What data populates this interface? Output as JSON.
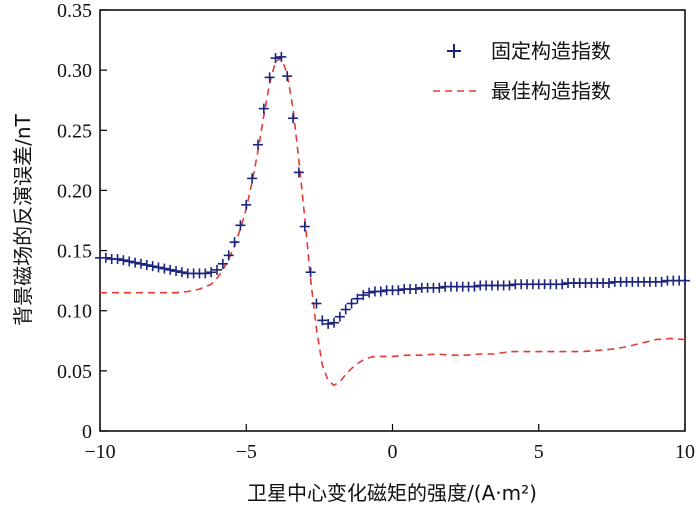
{
  "chart_data": {
    "type": "line",
    "title": "",
    "xlabel": "卫星中心变化磁矩的强度/(A·m²)",
    "ylabel": "背景磁场的反演误差/nT",
    "xlim": [
      -10,
      10
    ],
    "ylim": [
      0,
      0.35
    ],
    "xticks": [
      -10,
      -5,
      0,
      5,
      10
    ],
    "xtick_labels": [
      "−10",
      "−5",
      "0",
      "5",
      "10"
    ],
    "yticks": [
      0,
      0.05,
      0.1,
      0.15,
      0.2,
      0.25,
      0.3,
      0.35
    ],
    "ytick_labels": [
      "0",
      "0.05",
      "0.10",
      "0.15",
      "0.20",
      "0.25",
      "0.30",
      "0.35"
    ],
    "grid": false,
    "legend_position": "top-right",
    "colors": {
      "fixed": "#1a237e",
      "best": "#e53935",
      "axis": "#000000"
    },
    "series": [
      {
        "name": "固定构造指数",
        "style": "marker-plus",
        "x": [
          -10,
          -9.8,
          -9.6,
          -9.4,
          -9.2,
          -9.0,
          -8.8,
          -8.6,
          -8.4,
          -8.2,
          -8.0,
          -7.8,
          -7.6,
          -7.4,
          -7.2,
          -7.0,
          -6.8,
          -6.6,
          -6.4,
          -6.2,
          -6.0,
          -5.8,
          -5.6,
          -5.4,
          -5.2,
          -5.0,
          -4.8,
          -4.6,
          -4.4,
          -4.2,
          -4.0,
          -3.8,
          -3.6,
          -3.4,
          -3.2,
          -3.0,
          -2.8,
          -2.6,
          -2.4,
          -2.2,
          -2.0,
          -1.8,
          -1.6,
          -1.4,
          -1.2,
          -1.0,
          -0.8,
          -0.6,
          -0.4,
          -0.2,
          0,
          0.2,
          0.4,
          0.6,
          0.8,
          1.0,
          1.2,
          1.4,
          1.6,
          1.8,
          2.0,
          2.2,
          2.4,
          2.6,
          2.8,
          3.0,
          3.2,
          3.4,
          3.6,
          3.8,
          4.0,
          4.2,
          4.4,
          4.6,
          4.8,
          5.0,
          5.2,
          5.4,
          5.6,
          5.8,
          6.0,
          6.2,
          6.4,
          6.6,
          6.8,
          7.0,
          7.2,
          7.4,
          7.6,
          7.8,
          8.0,
          8.2,
          8.4,
          8.6,
          8.8,
          9.0,
          9.2,
          9.4,
          9.6,
          9.8,
          10.0
        ],
        "y": [
          0.144,
          0.144,
          0.143,
          0.143,
          0.142,
          0.141,
          0.14,
          0.139,
          0.138,
          0.137,
          0.136,
          0.135,
          0.134,
          0.133,
          0.132,
          0.131,
          0.131,
          0.131,
          0.131,
          0.132,
          0.134,
          0.139,
          0.146,
          0.157,
          0.171,
          0.188,
          0.21,
          0.238,
          0.268,
          0.294,
          0.31,
          0.311,
          0.295,
          0.26,
          0.215,
          0.17,
          0.132,
          0.106,
          0.092,
          0.089,
          0.09,
          0.095,
          0.101,
          0.106,
          0.11,
          0.113,
          0.115,
          0.116,
          0.116,
          0.117,
          0.117,
          0.117,
          0.118,
          0.118,
          0.118,
          0.119,
          0.119,
          0.119,
          0.119,
          0.12,
          0.12,
          0.12,
          0.12,
          0.12,
          0.12,
          0.121,
          0.121,
          0.121,
          0.121,
          0.121,
          0.121,
          0.122,
          0.122,
          0.122,
          0.122,
          0.122,
          0.122,
          0.122,
          0.122,
          0.122,
          0.123,
          0.123,
          0.123,
          0.123,
          0.123,
          0.123,
          0.123,
          0.123,
          0.124,
          0.124,
          0.124,
          0.124,
          0.124,
          0.124,
          0.124,
          0.124,
          0.124,
          0.125,
          0.125,
          0.125,
          0.125
        ]
      },
      {
        "name": "最佳构造指数",
        "style": "dashed-line",
        "x": [
          -10,
          -9.0,
          -8.0,
          -7.4,
          -7.0,
          -6.6,
          -6.2,
          -6.0,
          -5.8,
          -5.6,
          -5.4,
          -5.2,
          -5.0,
          -4.8,
          -4.6,
          -4.4,
          -4.2,
          -4.0,
          -3.8,
          -3.6,
          -3.4,
          -3.2,
          -3.0,
          -2.8,
          -2.6,
          -2.4,
          -2.2,
          -2.0,
          -1.8,
          -1.6,
          -1.4,
          -1.2,
          -1.0,
          -0.8,
          -0.6,
          -0.4,
          -0.2,
          0,
          0.5,
          1.0,
          1.5,
          2.0,
          2.5,
          3.0,
          3.5,
          4.0,
          4.5,
          5.0,
          5.5,
          6.0,
          6.5,
          7.0,
          7.5,
          8.0,
          8.5,
          9.0,
          9.5,
          10.0
        ],
        "y": [
          0.115,
          0.115,
          0.115,
          0.115,
          0.116,
          0.118,
          0.122,
          0.127,
          0.134,
          0.143,
          0.154,
          0.168,
          0.185,
          0.207,
          0.233,
          0.262,
          0.289,
          0.307,
          0.31,
          0.297,
          0.268,
          0.225,
          0.177,
          0.126,
          0.085,
          0.055,
          0.042,
          0.038,
          0.041,
          0.047,
          0.052,
          0.056,
          0.059,
          0.061,
          0.062,
          0.062,
          0.062,
          0.062,
          0.063,
          0.063,
          0.064,
          0.063,
          0.063,
          0.064,
          0.064,
          0.066,
          0.066,
          0.066,
          0.066,
          0.066,
          0.066,
          0.067,
          0.068,
          0.07,
          0.073,
          0.076,
          0.077,
          0.076
        ]
      }
    ]
  }
}
